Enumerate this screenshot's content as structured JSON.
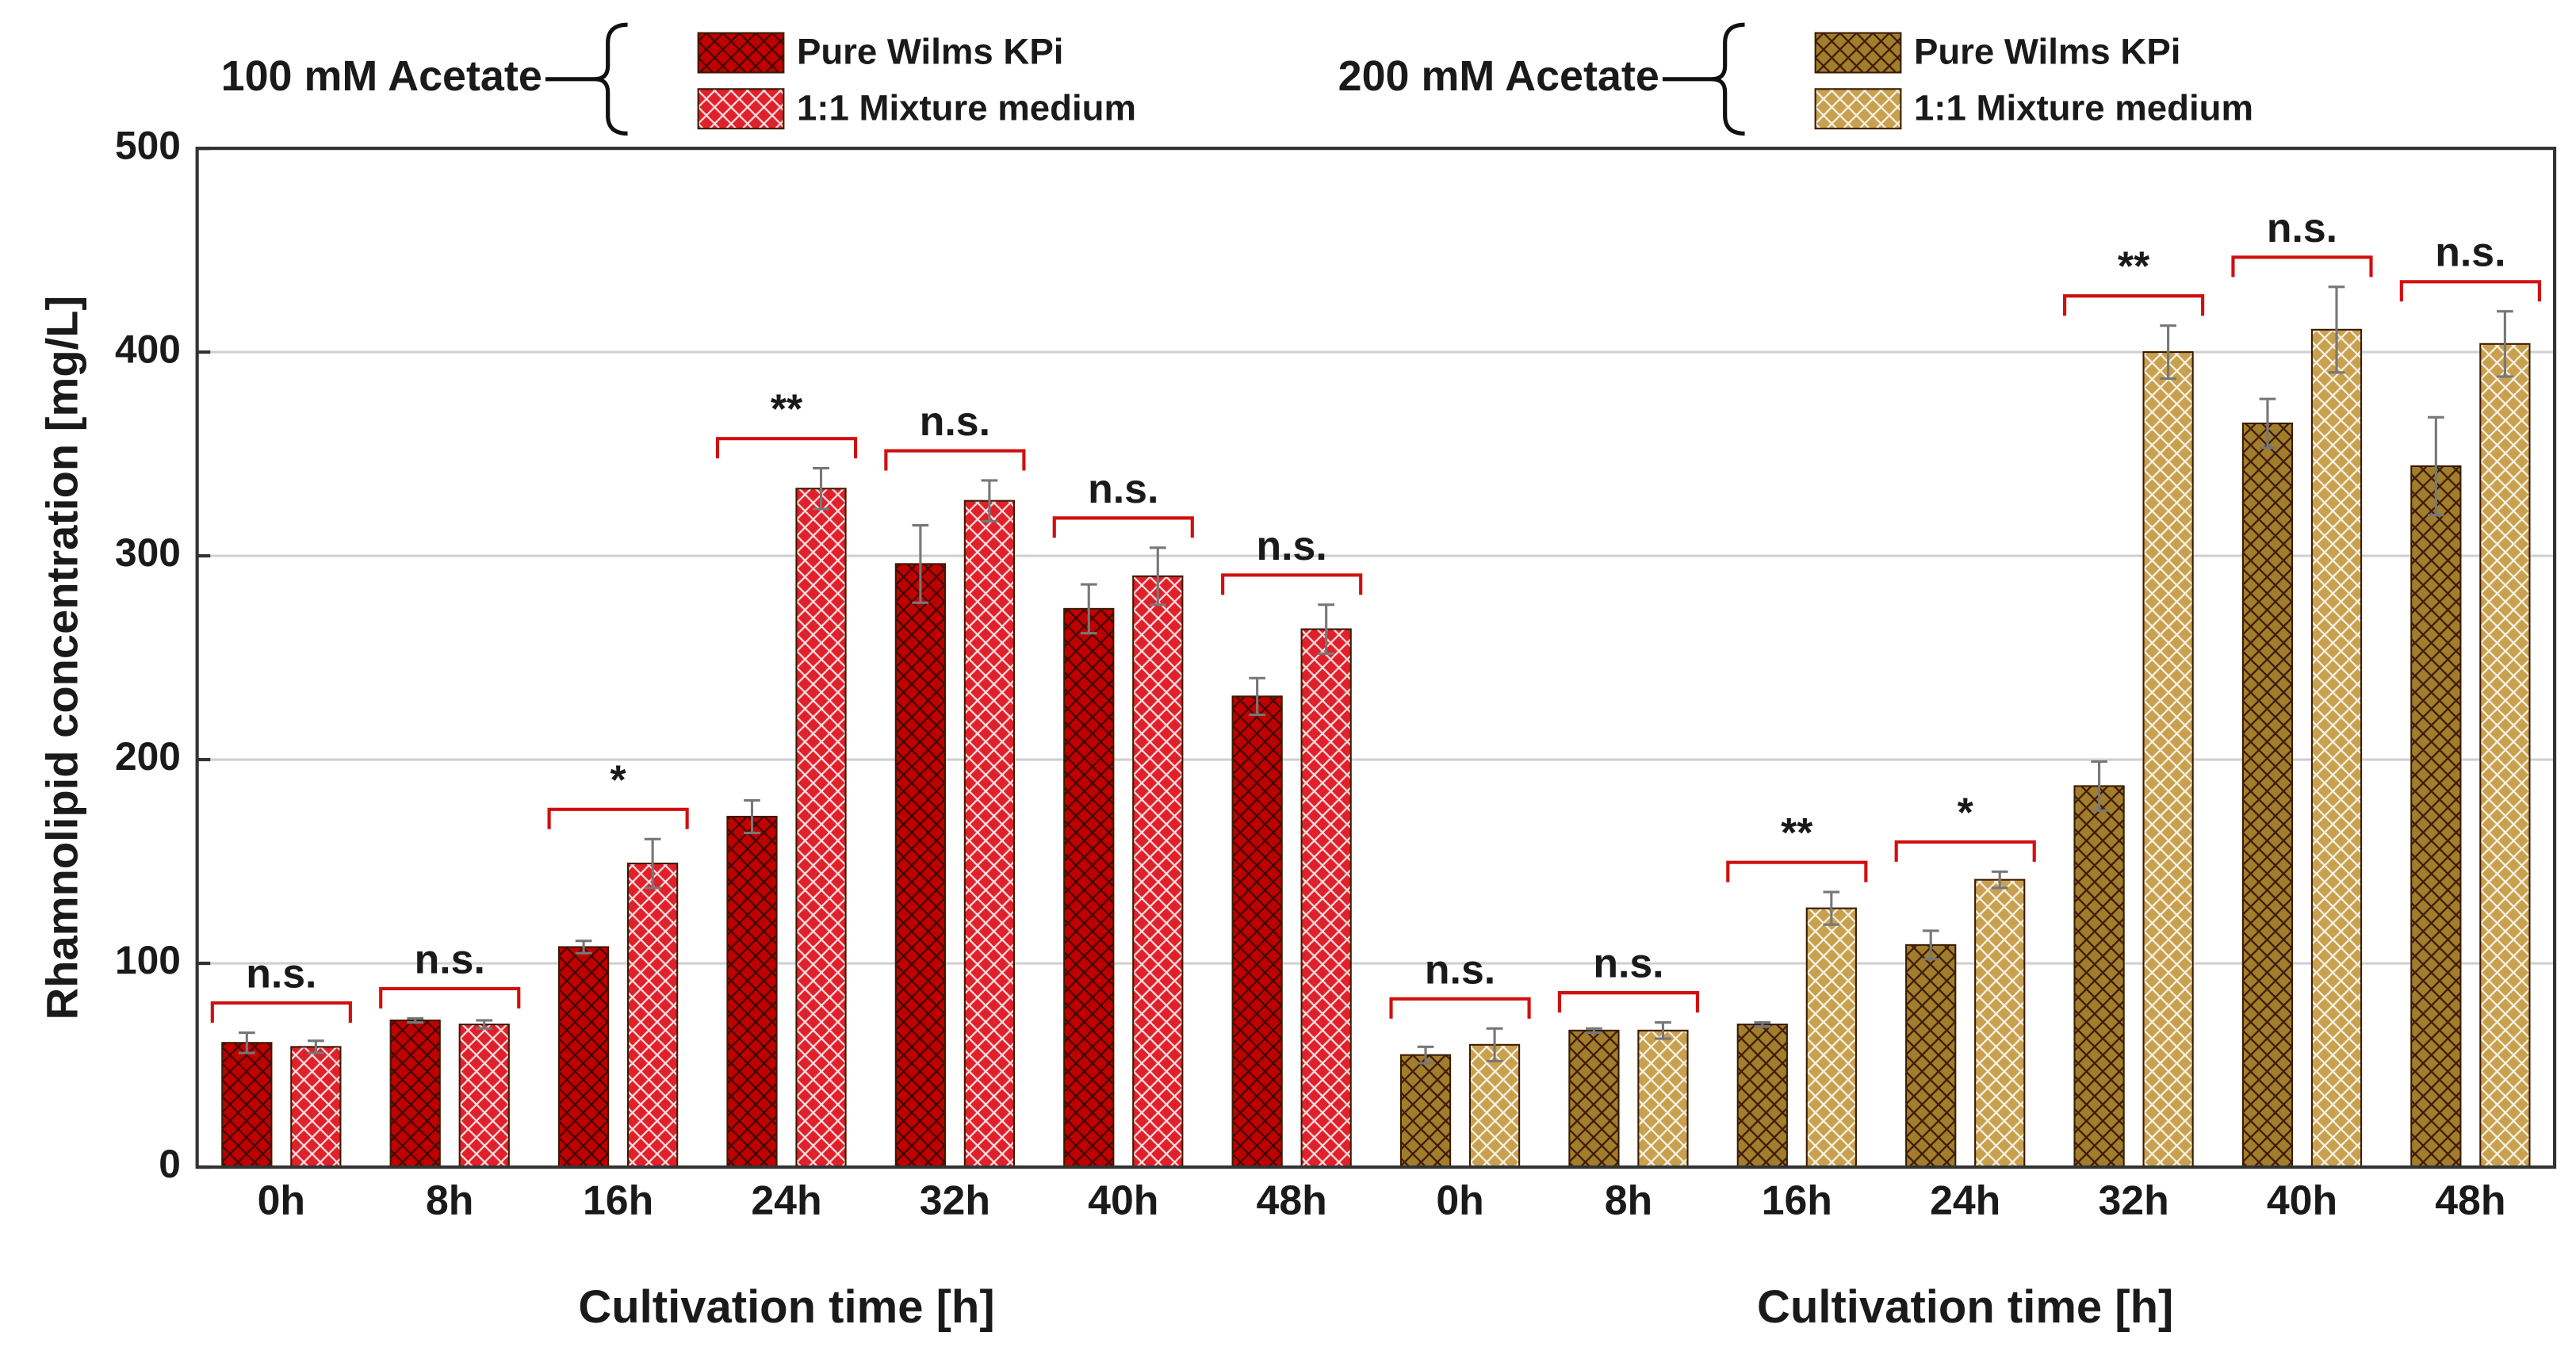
{
  "chart_data": {
    "type": "bar",
    "ylabel": "Rhamnolipid concentration [mg/L]",
    "ylim": [
      0,
      500
    ],
    "yticks": [
      0,
      100,
      200,
      300,
      400,
      500
    ],
    "grid": true,
    "groups": [
      {
        "label": "100 mM Acetate",
        "xlabel": "Cultivation time [h]",
        "categories": [
          "0h",
          "8h",
          "16h",
          "24h",
          "32h",
          "40h",
          "48h"
        ],
        "series": [
          {
            "name": "Pure Wilms KPi",
            "color": "#c00000",
            "values": [
              61,
              72,
              108,
              172,
              296,
              274,
              231
            ],
            "errors": [
              5,
              1,
              3,
              8,
              19,
              12,
              9
            ]
          },
          {
            "name": "1:1 Mixture medium",
            "color": "#e0202a",
            "values": [
              59,
              70,
              149,
              333,
              327,
              290,
              264
            ],
            "errors": [
              3,
              2,
              12,
              10,
              10,
              14,
              12
            ]
          }
        ],
        "significance": [
          "n.s.",
          "n.s.",
          "*",
          "**",
          "n.s.",
          "n.s.",
          "n.s."
        ]
      },
      {
        "label": "200 mM Acetate",
        "xlabel": "Cultivation time [h]",
        "categories": [
          "0h",
          "8h",
          "16h",
          "24h",
          "32h",
          "40h",
          "48h"
        ],
        "series": [
          {
            "name": "Pure Wilms KPi",
            "color": "#a27d2c",
            "values": [
              55,
              67,
              70,
              109,
              187,
              365,
              344
            ],
            "errors": [
              4,
              1,
              1,
              7,
              12,
              12,
              24
            ]
          },
          {
            "name": "1:1 Mixture medium",
            "color": "#c9a04e",
            "values": [
              60,
              67,
              127,
              141,
              400,
              411,
              404
            ],
            "errors": [
              8,
              4,
              8,
              4,
              13,
              21,
              16
            ]
          }
        ],
        "significance": [
          "n.s.",
          "n.s.",
          "**",
          "*",
          "**",
          "n.s.",
          "n.s."
        ]
      }
    ]
  }
}
